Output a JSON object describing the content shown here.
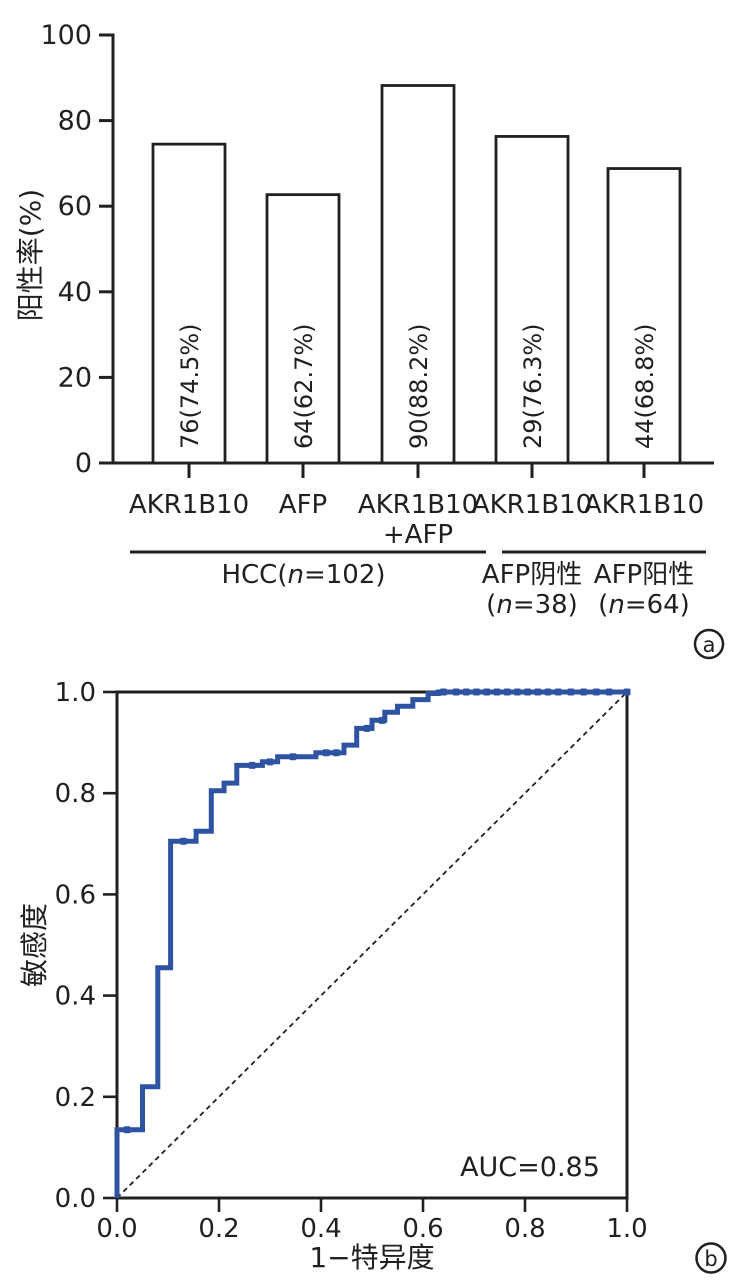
{
  "figure_type": "two-panel scientific figure",
  "colors": {
    "ink": "#231f20",
    "roc_line": "#2e53a3",
    "bar_fill": "#ffffff",
    "background": "#ffffff"
  },
  "chart_data": [
    {
      "type": "bar",
      "panel_label": "a",
      "title": "",
      "ylabel": "阳性率(%)",
      "ylim": [
        0,
        100
      ],
      "yticks": [
        0,
        20,
        40,
        60,
        80,
        100
      ],
      "categories": [
        [
          "AKR1B10"
        ],
        [
          "AFP"
        ],
        [
          "AKR1B10",
          "+AFP"
        ],
        [
          "AKR1B10"
        ],
        [
          "AKR1B10"
        ]
      ],
      "values": [
        74.5,
        62.7,
        88.2,
        76.3,
        68.8
      ],
      "bar_labels": [
        "76(74.5%)",
        "64(62.7%)",
        "90(88.2%)",
        "29(76.3%)",
        "44(68.8%)"
      ],
      "brackets": [
        {
          "from": 0,
          "to": 2
        },
        {
          "from": 3,
          "to": 4
        }
      ],
      "group_labels": [
        {
          "lines": [
            "HCC(n=102)"
          ],
          "bars": [
            0,
            2
          ]
        },
        {
          "lines": [
            "AFP阴性",
            "(n=38)"
          ],
          "bars": [
            3,
            3
          ]
        },
        {
          "lines": [
            "AFP阳性",
            "(n=64)"
          ],
          "bars": [
            4,
            4
          ]
        }
      ],
      "grid": false,
      "bar_outline_only": true
    },
    {
      "type": "line",
      "panel_label": "b",
      "title": "",
      "xlabel": "1−特异度",
      "ylabel": "敏感度",
      "xlim": [
        0,
        1
      ],
      "ylim": [
        0,
        1
      ],
      "xtick_labels": [
        "0.0",
        "0.2",
        "0.4",
        "0.6",
        "0.8",
        "1.0"
      ],
      "ytick_labels": [
        "0.0",
        "0.2",
        "0.4",
        "0.6",
        "0.8",
        "1.0"
      ],
      "annotation": "AUC=0.85",
      "diagonal_reference": true,
      "grid": false,
      "roc_points": [
        [
          0,
          0
        ],
        [
          0,
          0.135
        ],
        [
          0.05,
          0.135
        ],
        [
          0.05,
          0.22
        ],
        [
          0.08,
          0.22
        ],
        [
          0.08,
          0.455
        ],
        [
          0.105,
          0.455
        ],
        [
          0.105,
          0.705
        ],
        [
          0.155,
          0.705
        ],
        [
          0.155,
          0.725
        ],
        [
          0.185,
          0.725
        ],
        [
          0.185,
          0.805
        ],
        [
          0.21,
          0.805
        ],
        [
          0.21,
          0.82
        ],
        [
          0.235,
          0.82
        ],
        [
          0.235,
          0.855
        ],
        [
          0.285,
          0.855
        ],
        [
          0.285,
          0.862
        ],
        [
          0.315,
          0.862
        ],
        [
          0.315,
          0.872
        ],
        [
          0.39,
          0.872
        ],
        [
          0.39,
          0.88
        ],
        [
          0.445,
          0.88
        ],
        [
          0.445,
          0.895
        ],
        [
          0.47,
          0.895
        ],
        [
          0.47,
          0.928
        ],
        [
          0.5,
          0.928
        ],
        [
          0.5,
          0.944
        ],
        [
          0.525,
          0.944
        ],
        [
          0.525,
          0.96
        ],
        [
          0.55,
          0.96
        ],
        [
          0.55,
          0.972
        ],
        [
          0.58,
          0.972
        ],
        [
          0.58,
          0.985
        ],
        [
          0.61,
          0.985
        ],
        [
          0.61,
          0.997
        ],
        [
          0.63,
          0.997
        ],
        [
          0.63,
          1
        ],
        [
          1,
          1
        ]
      ],
      "markers": [
        [
          0.02,
          0.135
        ],
        [
          0.13,
          0.705
        ],
        [
          0.265,
          0.855
        ],
        [
          0.3,
          0.862
        ],
        [
          0.345,
          0.872
        ],
        [
          0.41,
          0.88
        ],
        [
          0.43,
          0.88
        ],
        [
          0.49,
          0.928
        ],
        [
          0.52,
          0.944
        ],
        [
          0.64,
          1
        ],
        [
          0.665,
          1
        ],
        [
          0.685,
          1
        ],
        [
          0.705,
          1
        ],
        [
          0.725,
          1
        ],
        [
          0.745,
          1
        ],
        [
          0.765,
          1
        ],
        [
          0.785,
          1
        ],
        [
          0.805,
          1
        ],
        [
          0.825,
          1
        ],
        [
          0.845,
          1
        ],
        [
          0.865,
          1
        ],
        [
          0.89,
          1
        ],
        [
          0.915,
          1
        ],
        [
          0.94,
          1
        ],
        [
          0.965,
          1
        ],
        [
          1,
          1
        ]
      ]
    }
  ]
}
